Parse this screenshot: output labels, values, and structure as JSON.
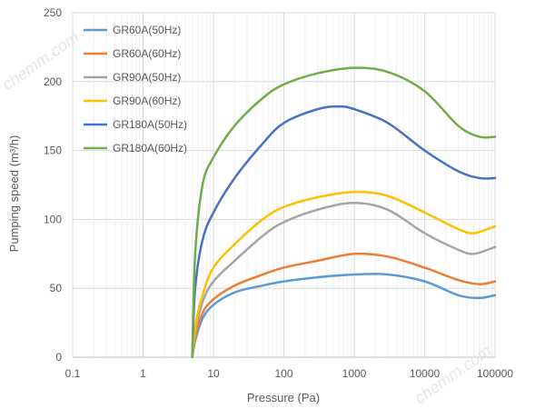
{
  "chart_data": {
    "type": "line",
    "title": "",
    "xlabel": "Pressure (Pa)",
    "ylabel": "Pumping speed (m³/h)",
    "xscale": "log",
    "xlim": [
      0.1,
      100000
    ],
    "ylim": [
      0,
      250
    ],
    "grid": true,
    "legend_position": "top-left",
    "x_tick_labels": [
      "0.1",
      "1",
      "10",
      "100",
      "1000",
      "10000",
      "100000"
    ],
    "x_tick_values": [
      0.1,
      1,
      10,
      100,
      1000,
      10000,
      100000
    ],
    "y_tick_labels": [
      "0",
      "50",
      "100",
      "150",
      "200",
      "250"
    ],
    "y_tick_values": [
      0,
      50,
      100,
      150,
      200,
      250
    ],
    "series": [
      {
        "name": "GR60A(50Hz)",
        "color": "#5B9BD5",
        "x": [
          5,
          5.5,
          7,
          10,
          20,
          50,
          100,
          300,
          1000,
          3000,
          10000,
          30000,
          60000,
          100000
        ],
        "y": [
          0,
          12,
          28,
          38,
          47,
          52,
          55,
          58,
          60,
          60,
          55,
          45,
          43,
          45
        ]
      },
      {
        "name": "GR60A(60Hz)",
        "color": "#ED7D31",
        "x": [
          5,
          5.5,
          7,
          10,
          20,
          50,
          100,
          300,
          1000,
          3000,
          10000,
          30000,
          60000,
          100000
        ],
        "y": [
          0,
          14,
          32,
          42,
          52,
          60,
          65,
          70,
          75,
          73,
          65,
          56,
          53,
          55
        ]
      },
      {
        "name": "GR90A(50Hz)",
        "color": "#A5A5A5",
        "x": [
          5,
          5.5,
          7,
          10,
          20,
          50,
          100,
          300,
          1000,
          3000,
          10000,
          30000,
          50000,
          100000
        ],
        "y": [
          0,
          18,
          40,
          55,
          70,
          88,
          98,
          107,
          112,
          107,
          90,
          78,
          75,
          80
        ]
      },
      {
        "name": "GR90A(60Hz)",
        "color": "#FFC000",
        "x": [
          5,
          5.5,
          7,
          10,
          20,
          50,
          100,
          300,
          1000,
          3000,
          10000,
          30000,
          50000,
          100000
        ],
        "y": [
          0,
          22,
          45,
          65,
          82,
          100,
          109,
          116,
          120,
          117,
          105,
          93,
          90,
          95
        ]
      },
      {
        "name": "GR180A(50Hz)",
        "color": "#4472C4",
        "x": [
          5,
          5.5,
          7,
          10,
          20,
          50,
          100,
          300,
          600,
          1000,
          3000,
          10000,
          30000,
          60000,
          100000
        ],
        "y": [
          0,
          50,
          85,
          105,
          130,
          155,
          170,
          180,
          182,
          180,
          170,
          150,
          135,
          130,
          130
        ]
      },
      {
        "name": "GR180A(60Hz)",
        "color": "#70AD47",
        "x": [
          5,
          5.5,
          7,
          10,
          20,
          50,
          100,
          300,
          1000,
          3000,
          10000,
          30000,
          60000,
          100000
        ],
        "y": [
          0,
          75,
          125,
          145,
          168,
          188,
          198,
          206,
          210,
          207,
          193,
          168,
          160,
          160
        ]
      }
    ]
  },
  "watermarks": [
    "chemm.com",
    "chemm.com"
  ]
}
